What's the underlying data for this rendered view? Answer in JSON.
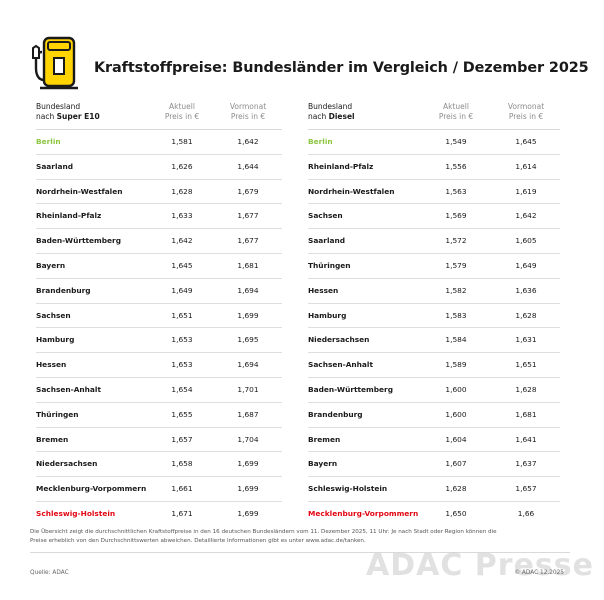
{
  "title": "Kraftstoffpreise: Bundesländer im Vergleich / Dezember 2025",
  "colors": {
    "best": "#8cc63f",
    "worst": "#e30613",
    "icon_yellow": "#ffd400"
  },
  "icon": "fuel-pump-icon",
  "e10": {
    "header": {
      "name_line1": "Bundesland",
      "name_prefix": "nach ",
      "name_bold": "Super E10",
      "col1_line1": "Aktuell",
      "col1_line2": "Preis in €",
      "col2_line1": "Vormonat",
      "col2_line2": "Preis in €"
    },
    "rows": [
      {
        "name": "Berlin",
        "current": "1,581",
        "previous": "1,642",
        "highlight": "best"
      },
      {
        "name": "Saarland",
        "current": "1,626",
        "previous": "1,644",
        "highlight": ""
      },
      {
        "name": "Nordrhein-Westfalen",
        "current": "1,628",
        "previous": "1,679",
        "highlight": ""
      },
      {
        "name": "Rheinland-Pfalz",
        "current": "1,633",
        "previous": "1,677",
        "highlight": ""
      },
      {
        "name": "Baden-Württemberg",
        "current": "1,642",
        "previous": "1,677",
        "highlight": ""
      },
      {
        "name": "Bayern",
        "current": "1,645",
        "previous": "1,681",
        "highlight": ""
      },
      {
        "name": "Brandenburg",
        "current": "1,649",
        "previous": "1,694",
        "highlight": ""
      },
      {
        "name": "Sachsen",
        "current": "1,651",
        "previous": "1,699",
        "highlight": ""
      },
      {
        "name": "Hamburg",
        "current": "1,653",
        "previous": "1,695",
        "highlight": ""
      },
      {
        "name": "Hessen",
        "current": "1,653",
        "previous": "1,694",
        "highlight": ""
      },
      {
        "name": "Sachsen-Anhalt",
        "current": "1,654",
        "previous": "1,701",
        "highlight": ""
      },
      {
        "name": "Thüringen",
        "current": "1,655",
        "previous": "1,687",
        "highlight": ""
      },
      {
        "name": "Bremen",
        "current": "1,657",
        "previous": "1,704",
        "highlight": ""
      },
      {
        "name": "Niedersachsen",
        "current": "1,658",
        "previous": "1,699",
        "highlight": ""
      },
      {
        "name": "Mecklenburg-Vorpommern",
        "current": "1,661",
        "previous": "1,699",
        "highlight": ""
      },
      {
        "name": "Schleswig-Holstein",
        "current": "1,671",
        "previous": "1,699",
        "highlight": "worst"
      }
    ]
  },
  "diesel": {
    "header": {
      "name_line1": "Bundesland",
      "name_prefix": "nach ",
      "name_bold": "Diesel",
      "col1_line1": "Aktuell",
      "col1_line2": "Preis in €",
      "col2_line1": "Vormonat",
      "col2_line2": "Preis in €"
    },
    "rows": [
      {
        "name": "Berlin",
        "current": "1,549",
        "previous": "1,645",
        "highlight": "best"
      },
      {
        "name": "Rheinland-Pfalz",
        "current": "1,556",
        "previous": "1,614",
        "highlight": ""
      },
      {
        "name": "Nordrhein-Westfalen",
        "current": "1,563",
        "previous": "1,619",
        "highlight": ""
      },
      {
        "name": "Sachsen",
        "current": "1,569",
        "previous": "1,642",
        "highlight": ""
      },
      {
        "name": "Saarland",
        "current": "1,572",
        "previous": "1,605",
        "highlight": ""
      },
      {
        "name": "Thüringen",
        "current": "1,579",
        "previous": "1,649",
        "highlight": ""
      },
      {
        "name": "Hessen",
        "current": "1,582",
        "previous": "1,636",
        "highlight": ""
      },
      {
        "name": "Hamburg",
        "current": "1,583",
        "previous": "1,628",
        "highlight": ""
      },
      {
        "name": "Niedersachsen",
        "current": "1,584",
        "previous": "1,631",
        "highlight": ""
      },
      {
        "name": "Sachsen-Anhalt",
        "current": "1,589",
        "previous": "1,651",
        "highlight": ""
      },
      {
        "name": "Baden-Württemberg",
        "current": "1,600",
        "previous": "1,628",
        "highlight": ""
      },
      {
        "name": "Brandenburg",
        "current": "1,600",
        "previous": "1,681",
        "highlight": ""
      },
      {
        "name": "Bremen",
        "current": "1,604",
        "previous": "1,641",
        "highlight": ""
      },
      {
        "name": "Bayern",
        "current": "1,607",
        "previous": "1,637",
        "highlight": ""
      },
      {
        "name": "Schleswig-Holstein",
        "current": "1,628",
        "previous": "1,657",
        "highlight": ""
      },
      {
        "name": "Mecklenburg-Vorpommern",
        "current": "1,650",
        "previous": "1,66",
        "highlight": "worst"
      }
    ]
  },
  "footnote": {
    "line1": "Die Übersicht zeigt die durchschnittlichen Kraftstoffpreise in den 16 deutschen Bundesländern vom 11. Dezember 2025, 11 Uhr. Je nach Stadt oder Region können die",
    "line2": "Preise erheblich von den Durchschnittswerten abweichen. Detaillierte Informationen gibt es unter www.adac.de/tanken."
  },
  "source": "Quelle: ADAC",
  "copyright": "© ADAC 12.2025",
  "watermark": "ADAC Presse"
}
